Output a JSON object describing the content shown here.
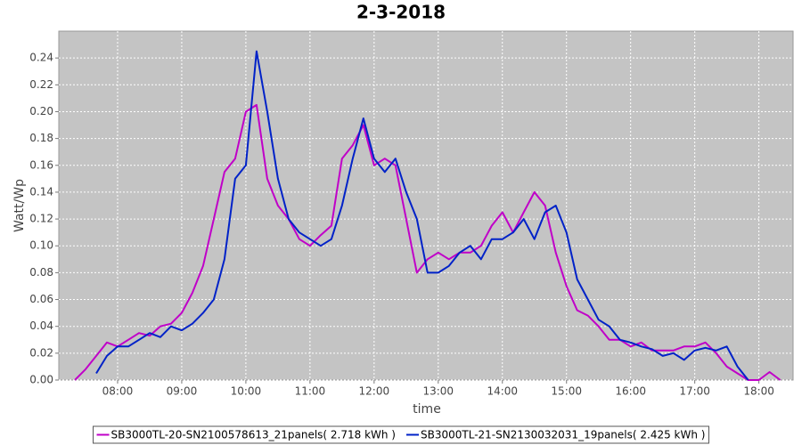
{
  "chart_data": {
    "type": "line",
    "title": "2-3-2018",
    "x_label": "time",
    "y_label": "Watt/Wp",
    "x": [
      "07:20",
      "07:30",
      "07:40",
      "07:50",
      "08:00",
      "08:10",
      "08:20",
      "08:30",
      "08:40",
      "08:50",
      "09:00",
      "09:10",
      "09:20",
      "09:30",
      "09:40",
      "09:50",
      "10:00",
      "10:10",
      "10:20",
      "10:30",
      "10:40",
      "10:50",
      "11:00",
      "11:10",
      "11:20",
      "11:30",
      "11:40",
      "11:50",
      "12:00",
      "12:10",
      "12:20",
      "12:30",
      "12:40",
      "12:50",
      "13:00",
      "13:10",
      "13:20",
      "13:30",
      "13:40",
      "13:50",
      "14:00",
      "14:10",
      "14:20",
      "14:30",
      "14:40",
      "14:50",
      "15:00",
      "15:10",
      "15:20",
      "15:30",
      "15:40",
      "15:50",
      "16:00",
      "16:10",
      "16:20",
      "16:30",
      "16:40",
      "16:50",
      "17:00",
      "17:10",
      "17:20",
      "17:30",
      "17:40",
      "17:50",
      "18:00",
      "18:10",
      "18:20"
    ],
    "series": [
      {
        "name": "SB3000TL-20-SN2100578613_21panels( 2.718 kWh )",
        "color": "#c000c8",
        "values": [
          0,
          0.008,
          0.018,
          0.028,
          0.025,
          0.03,
          0.035,
          0.033,
          0.04,
          0.042,
          0.05,
          0.065,
          0.085,
          0.12,
          0.155,
          0.165,
          0.2,
          0.205,
          0.15,
          0.13,
          0.12,
          0.105,
          0.1,
          0.108,
          0.115,
          0.165,
          0.175,
          0.19,
          0.16,
          0.165,
          0.16,
          0.12,
          0.08,
          0.09,
          0.095,
          0.09,
          0.095,
          0.095,
          0.1,
          0.115,
          0.125,
          0.11,
          0.125,
          0.14,
          0.13,
          0.095,
          0.07,
          0.052,
          0.048,
          0.04,
          0.03,
          0.03,
          0.025,
          0.028,
          0.022,
          0.022,
          0.022,
          0.025,
          0.025,
          0.028,
          0.02,
          0.01,
          0.005,
          0,
          0,
          0.006,
          0
        ]
      },
      {
        "name": "SB3000TL-21-SN2130032031_19panels( 2.425 kWh )",
        "color": "#0022c8",
        "values": [
          null,
          null,
          0.005,
          0.018,
          0.025,
          0.025,
          0.03,
          0.035,
          0.032,
          0.04,
          0.037,
          0.042,
          0.05,
          0.06,
          0.09,
          0.15,
          0.16,
          0.245,
          0.2,
          0.15,
          0.12,
          0.11,
          0.105,
          0.1,
          0.105,
          0.13,
          0.165,
          0.195,
          0.165,
          0.155,
          0.165,
          0.14,
          0.12,
          0.08,
          0.08,
          0.085,
          0.095,
          0.1,
          0.09,
          0.105,
          0.105,
          0.11,
          0.12,
          0.105,
          0.125,
          0.13,
          0.11,
          0.075,
          0.06,
          0.045,
          0.04,
          0.03,
          0.028,
          0.025,
          0.023,
          0.018,
          0.02,
          0.015,
          0.022,
          0.024,
          0.022,
          0.025,
          0.01,
          0,
          null,
          null,
          null
        ]
      }
    ],
    "xlim": [
      "07:05",
      "18:32"
    ],
    "xticks": [
      "08:00",
      "09:00",
      "10:00",
      "11:00",
      "12:00",
      "13:00",
      "14:00",
      "15:00",
      "16:00",
      "17:00",
      "18:00"
    ],
    "ylim": [
      0,
      0.26
    ],
    "yticks": [
      {
        "value": 0,
        "label": "0.00"
      },
      {
        "value": 0.02,
        "label": "0.02"
      },
      {
        "value": 0.04,
        "label": "0.04"
      },
      {
        "value": 0.06,
        "label": "0.06"
      },
      {
        "value": 0.08,
        "label": "0.08"
      },
      {
        "value": 0.1,
        "label": "0.10"
      },
      {
        "value": 0.12,
        "label": "0.12"
      },
      {
        "value": 0.14,
        "label": "0.14"
      },
      {
        "value": 0.16,
        "label": "0.16"
      },
      {
        "value": 0.18,
        "label": "0.18"
      },
      {
        "value": 0.2,
        "label": "0.20"
      },
      {
        "value": 0.22,
        "label": "0.22"
      },
      {
        "value": 0.24,
        "label": "0.24"
      }
    ],
    "grid": true,
    "legend": "bottom"
  }
}
